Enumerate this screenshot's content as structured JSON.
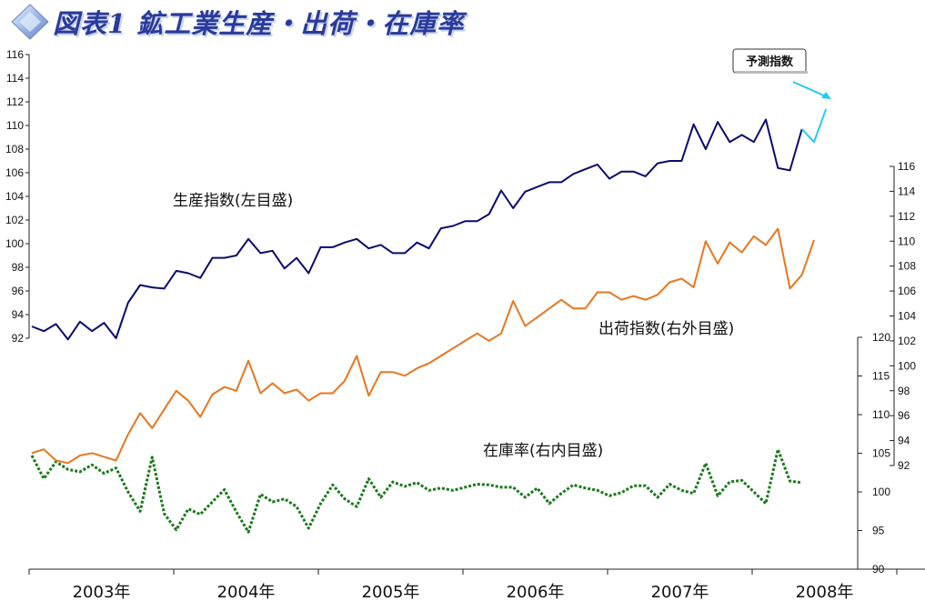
{
  "title": "図表1 鉱工業生産・出荷・在庫率",
  "colors": {
    "production": "#0b0b6e",
    "shipments": "#e8761e",
    "inventory": "#1a7a1a",
    "forecast": "#28c8f0",
    "title": "#2a3a9a"
  },
  "icon": "diamond-badge-icon",
  "chart_data": {
    "type": "line",
    "x_labels": [
      "2003年",
      "2004年",
      "2005年",
      "2006年",
      "2007年",
      "2008年"
    ],
    "annotations": {
      "production": "生産指数(左目盛)",
      "shipments": "出荷指数(右外目盛)",
      "inventory": "在庫率(右内目盛)",
      "forecast": "予測指数"
    },
    "axes": {
      "left": {
        "min": 92,
        "max": 116,
        "ticks": [
          92,
          94,
          96,
          98,
          100,
          102,
          104,
          106,
          108,
          110,
          112,
          114,
          116
        ]
      },
      "right_outer": {
        "min": 92,
        "max": 116,
        "ticks": [
          92,
          94,
          96,
          98,
          100,
          102,
          104,
          106,
          108,
          110,
          112,
          114,
          116
        ]
      },
      "right_inner": {
        "min": 90,
        "max": 120,
        "ticks": [
          90,
          95,
          100,
          105,
          110,
          115,
          120
        ]
      }
    },
    "series": [
      {
        "name": "生産指数(左目盛)",
        "axis": "left",
        "values": [
          93.0,
          92.6,
          93.2,
          91.9,
          93.4,
          92.6,
          93.3,
          92.0,
          95.0,
          96.5,
          96.3,
          96.2,
          97.7,
          97.5,
          97.1,
          98.8,
          98.8,
          99.0,
          100.4,
          99.2,
          99.4,
          97.9,
          98.8,
          97.5,
          99.7,
          99.7,
          100.1,
          100.4,
          99.6,
          99.9,
          99.2,
          99.2,
          100.1,
          99.6,
          101.3,
          101.5,
          101.9,
          101.9,
          102.5,
          104.5,
          103.0,
          104.4,
          104.8,
          105.2,
          105.2,
          105.9,
          106.3,
          106.7,
          105.5,
          106.1,
          106.1,
          105.7,
          106.8,
          107.0,
          107.0,
          110.1,
          108.0,
          110.3,
          108.6,
          109.2,
          108.6,
          110.5,
          106.4,
          106.2,
          109.7
        ]
      },
      {
        "name": "予測指数",
        "axis": "left",
        "values": [
          109.7,
          108.6,
          111.4
        ]
      },
      {
        "name": "出荷指数(右外目盛)",
        "axis": "right_outer",
        "values": [
          93.0,
          93.3,
          92.4,
          92.2,
          92.8,
          93.0,
          92.7,
          92.4,
          94.5,
          96.2,
          95.0,
          96.5,
          98.0,
          97.2,
          95.9,
          97.7,
          98.3,
          98.0,
          100.4,
          97.8,
          98.6,
          97.8,
          98.1,
          97.2,
          97.8,
          97.8,
          98.8,
          100.8,
          97.6,
          99.5,
          99.5,
          99.2,
          99.8,
          100.2,
          100.8,
          101.4,
          102.0,
          102.6,
          102.0,
          102.6,
          105.2,
          103.2,
          103.9,
          104.6,
          105.3,
          104.6,
          104.6,
          105.9,
          105.9,
          105.3,
          105.6,
          105.3,
          105.7,
          106.7,
          107.0,
          106.3,
          110.0,
          108.2,
          109.9,
          109.1,
          110.4,
          109.7,
          111.0,
          106.2,
          107.3,
          110.1
        ]
      },
      {
        "name": "在庫率(右内目盛)",
        "axis": "right_inner",
        "values": [
          104.7,
          101.7,
          103.9,
          102.9,
          102.6,
          103.5,
          102.4,
          103.1,
          100.0,
          97.5,
          104.5,
          97.2,
          95.1,
          97.8,
          97.1,
          98.7,
          100.3,
          97.4,
          94.8,
          99.7,
          98.7,
          99.1,
          98.1,
          95.3,
          98.5,
          100.9,
          99.1,
          98.1,
          101.7,
          99.3,
          101.3,
          100.7,
          101.2,
          100.2,
          100.5,
          100.2,
          100.6,
          101.0,
          100.9,
          100.6,
          100.6,
          99.3,
          100.5,
          98.5,
          99.8,
          100.9,
          100.5,
          100.2,
          99.5,
          99.9,
          100.8,
          100.8,
          99.3,
          101.0,
          100.2,
          99.8,
          103.7,
          99.5,
          101.3,
          101.5,
          100.0,
          98.5,
          105.5,
          101.4,
          101.2
        ]
      }
    ]
  }
}
